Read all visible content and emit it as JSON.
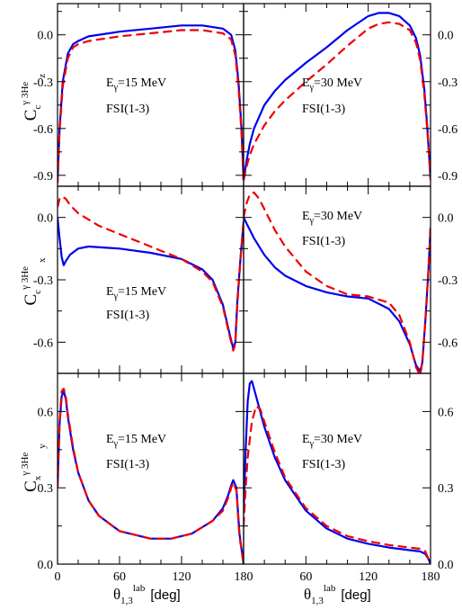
{
  "colors": {
    "solid": "#0000ee",
    "dashed": "#ee0000",
    "frame": "#000000"
  },
  "x_axis": {
    "symbol": "θ",
    "subscript": "1,3",
    "superscript": "lab",
    "unit": "[deg]",
    "ticks": [
      "0",
      "60",
      "120",
      "180"
    ]
  },
  "annotations": {
    "e15": {
      "prefix": "E",
      "sub": "γ",
      "suffix": "=15 MeV"
    },
    "e30": {
      "prefix": "E",
      "sub": "γ",
      "suffix": "=30 MeV"
    },
    "fsi": "FSI(1-3)"
  },
  "y_labels": {
    "row0": {
      "C": "C",
      "sup": "γ 3He",
      "sub": "c",
      "subsub": "z"
    },
    "row1": {
      "C": "C",
      "sup": "γ 3He",
      "sub": "c",
      "subsub": "x"
    },
    "row2": {
      "C": "C",
      "sup": "γ 3He",
      "sub": "x",
      "subsub": "y"
    }
  },
  "chart_data": [
    {
      "type": "line",
      "row": 0,
      "col": 0,
      "xlim": [
        0,
        180
      ],
      "ylim": [
        -0.97,
        0.2
      ],
      "yticks": [
        "0.0",
        "-0.3",
        "-0.6",
        "-0.9"
      ],
      "tick_values": [
        0,
        -0.3,
        -0.6,
        -0.9
      ],
      "series": [
        {
          "style": "solid",
          "x": [
            0,
            2,
            5,
            10,
            15,
            20,
            30,
            60,
            90,
            120,
            140,
            160,
            168,
            172,
            175,
            178,
            180
          ],
          "y": [
            -0.95,
            -0.6,
            -0.3,
            -0.12,
            -0.06,
            -0.04,
            -0.01,
            0.02,
            0.04,
            0.06,
            0.06,
            0.04,
            0.0,
            -0.1,
            -0.3,
            -0.6,
            -0.93
          ]
        },
        {
          "style": "dashed",
          "x": [
            0,
            2,
            5,
            10,
            15,
            20,
            30,
            60,
            90,
            120,
            140,
            160,
            168,
            172,
            175,
            178,
            180
          ],
          "y": [
            -0.95,
            -0.62,
            -0.33,
            -0.15,
            -0.08,
            -0.06,
            -0.04,
            -0.01,
            0.01,
            0.03,
            0.03,
            0.01,
            -0.03,
            -0.13,
            -0.33,
            -0.63,
            -0.95
          ]
        }
      ]
    },
    {
      "type": "line",
      "row": 0,
      "col": 1,
      "xlim": [
        0,
        180
      ],
      "ylim": [
        -0.97,
        0.2
      ],
      "yticks": [
        "0.0",
        "-0.3",
        "-0.6",
        "-0.9"
      ],
      "tick_values": [
        0,
        -0.3,
        -0.6,
        -0.9
      ],
      "series": [
        {
          "style": "solid",
          "x": [
            0,
            3,
            6,
            10,
            20,
            30,
            40,
            60,
            80,
            100,
            120,
            130,
            140,
            150,
            160,
            166,
            170,
            174,
            177,
            180
          ],
          "y": [
            -0.93,
            -0.8,
            -0.7,
            -0.6,
            -0.45,
            -0.36,
            -0.29,
            -0.18,
            -0.08,
            0.03,
            0.12,
            0.14,
            0.14,
            0.12,
            0.06,
            -0.02,
            -0.13,
            -0.35,
            -0.6,
            -0.92
          ]
        },
        {
          "style": "dashed",
          "x": [
            0,
            3,
            6,
            10,
            20,
            30,
            40,
            60,
            80,
            100,
            120,
            130,
            140,
            150,
            160,
            166,
            170,
            174,
            177,
            180
          ],
          "y": [
            -0.93,
            -0.84,
            -0.77,
            -0.7,
            -0.58,
            -0.49,
            -0.42,
            -0.3,
            -0.19,
            -0.07,
            0.04,
            0.07,
            0.08,
            0.07,
            0.03,
            -0.05,
            -0.16,
            -0.38,
            -0.62,
            -0.93
          ]
        }
      ]
    },
    {
      "type": "line",
      "row": 1,
      "col": 0,
      "xlim": [
        0,
        180
      ],
      "ylim": [
        -0.75,
        0.15
      ],
      "yticks": [
        "0.0",
        "-0.3",
        "-0.6"
      ],
      "tick_values": [
        0,
        -0.3,
        -0.6
      ],
      "series": [
        {
          "style": "solid",
          "x": [
            0,
            2,
            4,
            6,
            8,
            12,
            20,
            30,
            60,
            90,
            120,
            140,
            150,
            160,
            166,
            170,
            172,
            174,
            177,
            180
          ],
          "y": [
            0.0,
            -0.1,
            -0.19,
            -0.23,
            -0.21,
            -0.18,
            -0.15,
            -0.14,
            -0.15,
            -0.17,
            -0.2,
            -0.25,
            -0.3,
            -0.42,
            -0.55,
            -0.63,
            -0.6,
            -0.4,
            -0.2,
            -0.02
          ]
        },
        {
          "style": "dashed",
          "x": [
            0,
            2,
            4,
            8,
            12,
            20,
            40,
            60,
            90,
            120,
            140,
            150,
            160,
            166,
            170,
            172,
            174,
            177,
            180
          ],
          "y": [
            0.05,
            0.09,
            0.1,
            0.09,
            0.06,
            0.02,
            -0.04,
            -0.08,
            -0.14,
            -0.2,
            -0.26,
            -0.31,
            -0.43,
            -0.56,
            -0.64,
            -0.61,
            -0.42,
            -0.2,
            -0.02
          ]
        }
      ]
    },
    {
      "type": "line",
      "row": 1,
      "col": 1,
      "xlim": [
        0,
        180
      ],
      "ylim": [
        -0.75,
        0.15
      ],
      "yticks": [
        "0.0",
        "-0.3",
        "-0.6"
      ],
      "tick_values": [
        0,
        -0.3,
        -0.6
      ],
      "series": [
        {
          "style": "solid",
          "x": [
            0,
            5,
            10,
            20,
            30,
            40,
            60,
            80,
            100,
            120,
            140,
            150,
            160,
            166,
            170,
            172,
            175,
            178,
            180
          ],
          "y": [
            0.0,
            -0.05,
            -0.1,
            -0.18,
            -0.24,
            -0.28,
            -0.33,
            -0.36,
            -0.38,
            -0.39,
            -0.44,
            -0.5,
            -0.61,
            -0.71,
            -0.74,
            -0.7,
            -0.5,
            -0.25,
            -0.05
          ]
        },
        {
          "style": "dashed",
          "x": [
            0,
            3,
            6,
            10,
            15,
            20,
            30,
            40,
            60,
            80,
            100,
            120,
            140,
            150,
            160,
            166,
            170,
            172,
            175,
            178,
            180
          ],
          "y": [
            0.0,
            0.07,
            0.11,
            0.12,
            0.09,
            0.04,
            -0.06,
            -0.14,
            -0.26,
            -0.33,
            -0.37,
            -0.38,
            -0.41,
            -0.47,
            -0.6,
            -0.72,
            -0.76,
            -0.7,
            -0.5,
            -0.25,
            -0.05
          ]
        }
      ]
    },
    {
      "type": "line",
      "row": 2,
      "col": 0,
      "xlim": [
        0,
        180
      ],
      "ylim": [
        0,
        0.75
      ],
      "yticks": [
        "0.0",
        "0.3",
        "0.6"
      ],
      "tick_values": [
        0,
        0.3,
        0.6
      ],
      "series": [
        {
          "style": "solid",
          "x": [
            0,
            2,
            4,
            6,
            8,
            10,
            15,
            20,
            30,
            40,
            60,
            90,
            110,
            130,
            150,
            160,
            165,
            168,
            170,
            173,
            176,
            180
          ],
          "y": [
            0.3,
            0.55,
            0.66,
            0.68,
            0.65,
            0.58,
            0.45,
            0.36,
            0.25,
            0.19,
            0.13,
            0.1,
            0.1,
            0.12,
            0.17,
            0.22,
            0.27,
            0.31,
            0.33,
            0.3,
            0.12,
            0.0
          ]
        },
        {
          "style": "dashed",
          "x": [
            0,
            2,
            4,
            6,
            8,
            10,
            15,
            20,
            30,
            40,
            60,
            90,
            110,
            130,
            150,
            160,
            165,
            168,
            170,
            173,
            176,
            180
          ],
          "y": [
            0.3,
            0.56,
            0.68,
            0.69,
            0.66,
            0.59,
            0.46,
            0.36,
            0.25,
            0.19,
            0.13,
            0.1,
            0.1,
            0.12,
            0.17,
            0.21,
            0.26,
            0.3,
            0.32,
            0.29,
            0.11,
            0.0
          ]
        }
      ]
    },
    {
      "type": "line",
      "row": 2,
      "col": 1,
      "xlim": [
        0,
        180
      ],
      "ylim": [
        0,
        0.75
      ],
      "yticks": [
        "0.0",
        "0.3",
        "0.6"
      ],
      "tick_values": [
        0,
        0.3,
        0.6
      ],
      "series": [
        {
          "style": "solid",
          "x": [
            0,
            2,
            4,
            6,
            8,
            10,
            14,
            20,
            30,
            40,
            60,
            80,
            100,
            120,
            140,
            160,
            170,
            175,
            178,
            180
          ],
          "y": [
            0.2,
            0.45,
            0.64,
            0.71,
            0.72,
            0.69,
            0.63,
            0.54,
            0.42,
            0.33,
            0.21,
            0.14,
            0.1,
            0.08,
            0.065,
            0.055,
            0.05,
            0.04,
            0.02,
            0.0
          ]
        },
        {
          "style": "dashed",
          "x": [
            0,
            2,
            4,
            8,
            12,
            16,
            20,
            30,
            40,
            60,
            80,
            100,
            120,
            140,
            160,
            170,
            175,
            178,
            180
          ],
          "y": [
            0.15,
            0.3,
            0.42,
            0.56,
            0.62,
            0.61,
            0.56,
            0.44,
            0.34,
            0.22,
            0.15,
            0.11,
            0.09,
            0.075,
            0.065,
            0.06,
            0.05,
            0.02,
            0.0
          ]
        }
      ]
    }
  ]
}
